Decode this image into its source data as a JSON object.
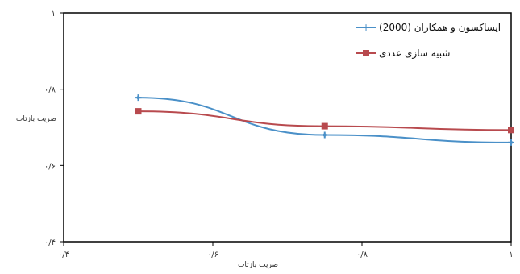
{
  "chart_data": {
    "type": "line",
    "xlabel": "ضریب بازتاب",
    "ylabel": "ضریب بازتاب",
    "xlim": [
      0.4,
      1.0
    ],
    "ylim": [
      0.4,
      1.0
    ],
    "x_ticks": [
      0.4,
      0.6,
      0.8,
      1.0
    ],
    "y_ticks": [
      0.4,
      0.6,
      0.8,
      1.0
    ],
    "x_tick_labels": [
      "۰/۴",
      "۰/۶",
      "۰/۸",
      "۱"
    ],
    "y_tick_labels": [
      "۰/۴",
      "۰/۶",
      "۰/۸",
      "۱"
    ],
    "grid": false,
    "legend_position": "top-right",
    "series": [
      {
        "name": "ایساکسون و همکاران (2000)",
        "color": "#4a90c8",
        "marker": "plus",
        "x": [
          0.5,
          0.75,
          1.0
        ],
        "y": [
          0.778,
          0.68,
          0.66
        ]
      },
      {
        "name": "شبیه سازی عددی",
        "color": "#b84a4e",
        "marker": "square",
        "x": [
          0.5,
          0.75,
          1.0
        ],
        "y": [
          0.742,
          0.703,
          0.693
        ]
      }
    ]
  }
}
